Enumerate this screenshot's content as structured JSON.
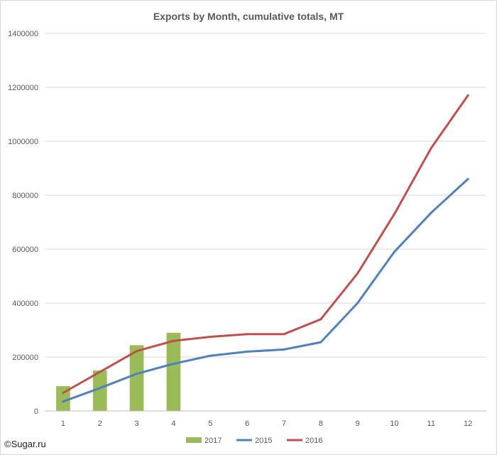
{
  "chart_data": {
    "type": "bar",
    "title": "Exports by Month, cumulative totals, MT",
    "xlabel": "",
    "ylabel": "",
    "categories": [
      "1",
      "2",
      "3",
      "4",
      "5",
      "6",
      "7",
      "8",
      "9",
      "10",
      "11",
      "12"
    ],
    "ylim": [
      0,
      1400000
    ],
    "yticks": [
      "0",
      "200000",
      "400000",
      "600000",
      "800000",
      "1000000",
      "1200000",
      "1400000"
    ],
    "grid": true,
    "legend_position": "bottom",
    "series": [
      {
        "name": "2017",
        "kind": "bar",
        "color": "#9bbb59",
        "values": [
          92000,
          150000,
          244000,
          290000,
          null,
          null,
          null,
          null,
          null,
          null,
          null,
          null
        ]
      },
      {
        "name": "2015",
        "kind": "line",
        "color": "#4f81bd",
        "values": [
          35000,
          85000,
          138000,
          175000,
          205000,
          220000,
          228000,
          255000,
          400000,
          590000,
          735000,
          860000
        ]
      },
      {
        "name": "2016",
        "kind": "line",
        "color": "#c0504d",
        "values": [
          67000,
          145000,
          222000,
          260000,
          275000,
          285000,
          285000,
          340000,
          510000,
          730000,
          975000,
          1170000
        ]
      }
    ]
  },
  "credit": "©Sugar.ru"
}
